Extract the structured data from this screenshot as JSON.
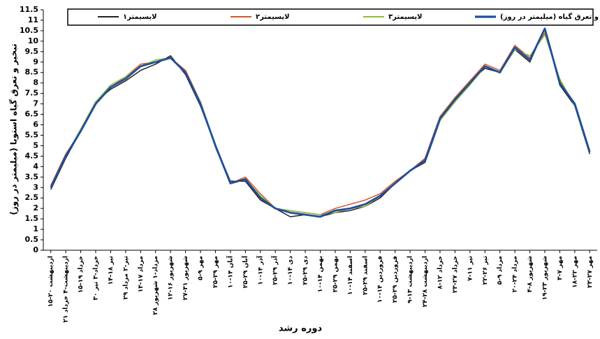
{
  "chart_data": {
    "type": "line",
    "x_label": "دوره رشد",
    "y_label": "تبخیر و تعرق گیاه استویا (میلیمتر در روز)",
    "categories": [
      "۱۵-۲۰ اردیبهشت",
      "۲۱ اردیبهشت-۴ خرداد",
      "۱۵-۱۹ خرداد",
      "۳۰ خرداد-۳ تیر",
      "۱۴-۱۸ تیر",
      "۲۹ تیر-۲ مرداد",
      "۱۳-۱۷ مرداد",
      "۲۸ مرداد-۱ شهریور",
      "۱۲-۱۶ شهریور",
      "۲۷-۳۱ شهریور",
      "۵-۹ مهر",
      "۲۵-۲۹ مهر",
      "۱۰-۱۴ آبان",
      "۲۵-۲۹ آبان",
      "۱۰-۱۴ آذر",
      "۲۵-۲۹ آذر",
      "۱۰-۱۴ دی",
      "۲۵-۲۹ دی",
      "۱۰-۱۴ بهمن",
      "۲۵-۲۹ بهمن",
      "۱۰-۱۴ اسفند",
      "۲۵-۲۹ اسفند",
      "۱۰-۱۴ فروردین",
      "۲۵-۲۹ فروردین",
      "۹-۱۳ اردیبهشت",
      "۲۴-۲۸ اردیبهشت",
      "۸-۱۲ خرداد",
      "۲۳-۲۷ خرداد",
      "۷-۱۱ تیر",
      "۲۲-۲۶ تیر",
      "۵-۹ مرداد",
      "۲۰-۲۴ مرداد",
      "۴-۸ شهریور",
      "۱۹-۲۳ شهریور",
      "۳-۷ مهر",
      "۱۸-۲۲ مهر",
      "۲۳-۲۷ مهر"
    ],
    "series": [
      {
        "name": "لایسیمتر۱",
        "color": "#222222",
        "width": 1.5,
        "values": [
          2.9,
          4.4,
          5.7,
          7.1,
          7.7,
          8.1,
          8.6,
          8.9,
          9.3,
          8.4,
          6.9,
          5.0,
          3.3,
          3.3,
          2.4,
          2.0,
          1.6,
          1.7,
          1.6,
          1.8,
          1.9,
          2.1,
          2.5,
          3.2,
          3.8,
          4.2,
          6.2,
          7.2,
          8.1,
          8.7,
          8.5,
          9.6,
          9.0,
          10.6,
          7.9,
          6.9,
          4.6
        ]
      },
      {
        "name": "لایسیمتر۲",
        "color": "#d9541e",
        "width": 1.5,
        "values": [
          3.1,
          4.6,
          5.7,
          7.0,
          7.8,
          8.3,
          8.9,
          9.0,
          9.2,
          8.6,
          7.1,
          5.0,
          3.2,
          3.5,
          2.7,
          2.0,
          1.9,
          1.8,
          1.7,
          2.0,
          2.2,
          2.4,
          2.7,
          3.3,
          3.8,
          4.4,
          6.4,
          7.3,
          8.1,
          8.9,
          8.6,
          9.8,
          9.2,
          10.4,
          8.1,
          7.0,
          4.7
        ]
      },
      {
        "name": "لایسیمتر۳",
        "color": "#8dbb3c",
        "width": 1.5,
        "values": [
          3.0,
          4.5,
          5.8,
          7.1,
          7.9,
          8.3,
          8.8,
          9.1,
          9.2,
          8.5,
          7.1,
          4.9,
          3.2,
          3.4,
          2.6,
          2.0,
          1.9,
          1.8,
          1.7,
          1.8,
          2.0,
          2.1,
          2.6,
          3.2,
          3.8,
          4.3,
          6.2,
          7.1,
          7.9,
          8.8,
          8.5,
          9.6,
          9.3,
          10.3,
          8.2,
          6.9,
          4.7
        ]
      },
      {
        "name": "تبخیر و تعرق گیاه (میلیمتر در روز)",
        "color": "#1f4e9c",
        "width": 2.8,
        "values": [
          3.0,
          4.5,
          5.7,
          7.0,
          7.8,
          8.2,
          8.8,
          9.0,
          9.2,
          8.5,
          7.0,
          5.0,
          3.2,
          3.4,
          2.5,
          2.0,
          1.8,
          1.7,
          1.6,
          1.9,
          2.0,
          2.2,
          2.6,
          3.2,
          3.8,
          4.3,
          6.3,
          7.2,
          8.0,
          8.8,
          8.5,
          9.7,
          9.1,
          10.6,
          8.0,
          7.0,
          4.7
        ]
      }
    ],
    "ylim": [
      0,
      11.5
    ],
    "yticks": [
      0,
      0.5,
      1,
      1.5,
      2,
      2.5,
      3,
      3.5,
      4,
      4.5,
      5,
      5.5,
      6,
      6.5,
      7,
      7.5,
      8,
      8.5,
      9,
      9.5,
      10,
      10.5,
      11,
      11.5
    ],
    "grid": false
  }
}
